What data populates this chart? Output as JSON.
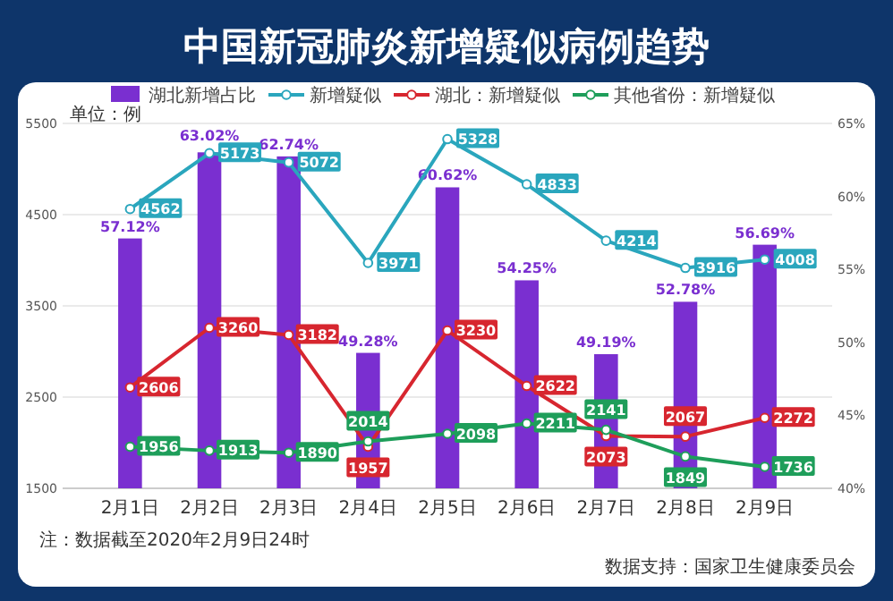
{
  "chart_data": {
    "type": "bar",
    "title": "中国新冠肺炎新增疑似病例趋势",
    "ylabel": "单位：例",
    "annotations": [
      "注：数据截至2020年2月9日24时",
      "数据支持：国家卫生健康委员会"
    ],
    "categories": [
      "2月1日",
      "2月2日",
      "2月3日",
      "2月4日",
      "2月5日",
      "2月6日",
      "2月7日",
      "2月8日",
      "2月9日"
    ],
    "series": [
      {
        "name": "湖北新增占比",
        "axis": "y2",
        "color": "#7a2fd0",
        "values": [
          57.12,
          63.02,
          62.74,
          49.28,
          60.62,
          54.25,
          49.19,
          52.78,
          56.69
        ],
        "value_labels": [
          "57.12%",
          "63.02%",
          "62.74%",
          "49.28%",
          "60.62%",
          "54.25%",
          "49.19%",
          "52.78%",
          "56.69%"
        ]
      },
      {
        "name": "新增疑似",
        "type": "line",
        "color": "#2aa6bd",
        "values": [
          4562,
          5173,
          5072,
          3971,
          5328,
          4833,
          4214,
          3916,
          4008
        ],
        "value_labels": [
          "4562",
          "5173",
          "5072",
          "3971",
          "5328",
          "4833",
          "4214",
          "3916",
          "4008"
        ]
      },
      {
        "name": "湖北：新增疑似",
        "type": "line",
        "color": "#d7262f",
        "values": [
          2606,
          3260,
          3182,
          1957,
          3230,
          2622,
          2073,
          2067,
          2272
        ],
        "value_labels": [
          "2606",
          "3260",
          "3182",
          "1957",
          "3230",
          "2622",
          "2073",
          "2067",
          "2272"
        ]
      },
      {
        "name": "其他省份：新增疑似",
        "type": "line",
        "color": "#1e9e5a",
        "values": [
          1956,
          1913,
          1890,
          2014,
          2098,
          2211,
          2141,
          1849,
          1736
        ],
        "value_labels": [
          "1956",
          "1913",
          "1890",
          "2014",
          "2098",
          "2211",
          "2141",
          "1849",
          "1736"
        ]
      }
    ],
    "ylim": [
      1500,
      5500
    ],
    "yticks": [
      1500,
      2500,
      3500,
      4500,
      5500
    ],
    "y2lim": [
      40,
      65
    ],
    "y2ticks": [
      {
        "value": 40,
        "label": "40%"
      },
      {
        "value": 45,
        "label": "45%"
      },
      {
        "value": 50,
        "label": "50%"
      },
      {
        "value": 55,
        "label": "55%"
      },
      {
        "value": 60,
        "label": "60%"
      },
      {
        "value": 65,
        "label": "65%"
      }
    ],
    "grid": "y",
    "legend": "top",
    "marker": "circle",
    "line_style": "solid"
  }
}
